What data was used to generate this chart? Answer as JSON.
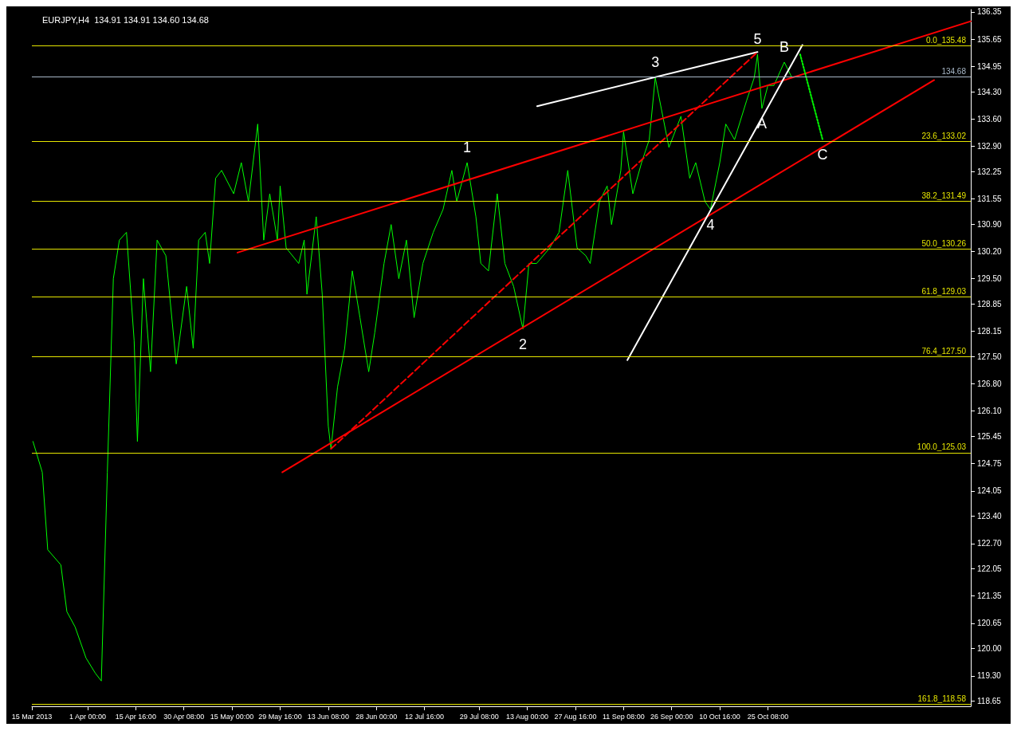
{
  "chart_data": {
    "type": "line",
    "title": "EURJPY,H4  134.91 134.91 134.60 134.68",
    "x": [
      "2013-03-15T08:00",
      "2013-03-18T04:00",
      "2013-03-19T20:00",
      "2013-03-23T20:00",
      "2013-03-25T16:00",
      "2013-03-28T04:00",
      "2013-03-31T12:00",
      "2013-04-03T08:00",
      "2013-04-05T04:00",
      "2013-04-07T00:00",
      "2013-04-08T20:00",
      "2013-04-10T16:00",
      "2013-04-12T20:00",
      "2013-04-15T04:00",
      "2013-04-16T04:00",
      "2013-04-18T00:00",
      "2013-04-20T04:00",
      "2013-04-22T04:00",
      "2013-04-24T20:00",
      "2013-04-28T00:00",
      "2013-05-01T04:00",
      "2013-05-03T04:00",
      "2013-05-04T20:00",
      "2013-05-06T20:00",
      "2013-05-08T04:00",
      "2013-05-10T00:00",
      "2013-05-11T20:00",
      "2013-05-15T12:00",
      "2013-05-17T20:00",
      "2013-05-20T00:00",
      "2013-05-22T20:00",
      "2013-05-24T16:00",
      "2013-05-26T12:00",
      "2013-05-28T20:00",
      "2013-05-29T16:00",
      "2013-05-31T12:00",
      "2013-06-04T08:00",
      "2013-06-06T00:00",
      "2013-06-06T20:00",
      "2013-06-09T16:00",
      "2013-06-11T12:00",
      "2013-06-13T08:00",
      "2013-06-14T04:00",
      "2013-06-16T04:00",
      "2013-06-18T08:00",
      "2013-06-20T16:00",
      "2013-06-23T00:00",
      "2013-06-25T16:00",
      "2013-06-27T12:00",
      "2013-06-30T08:00",
      "2013-07-02T12:00",
      "2013-07-04T20:00",
      "2013-07-07T04:00",
      "2013-07-09T12:00",
      "2013-07-12T04:00",
      "2013-07-15T08:00",
      "2013-07-18T08:00",
      "2013-07-21T00:00",
      "2013-07-22T12:00",
      "2013-07-25T16:00",
      "2013-07-28T08:00",
      "2013-07-29T20:00",
      "2013-08-01T04:00",
      "2013-08-03T20:00",
      "2013-08-06T04:00",
      "2013-08-08T20:00",
      "2013-08-11T16:00",
      "2013-08-13T12:00",
      "2013-08-15T20:00",
      "2013-08-19T20:00",
      "2013-08-22T16:00",
      "2013-08-25T08:00",
      "2013-08-28T04:00",
      "2013-08-30T20:00",
      "2013-09-01T04:00",
      "2013-09-04T00:00",
      "2013-09-06T08:00",
      "2013-09-07T16:00",
      "2013-09-10T12:00",
      "2013-09-11T08:00",
      "2013-09-14T04:00",
      "2013-09-16T20:00",
      "2013-09-19T04:00",
      "2013-09-21T00:00",
      "2013-09-22T20:00",
      "2013-09-25T04:00",
      "2013-09-28T20:00",
      "2013-10-01T12:00",
      "2013-10-03T08:00",
      "2013-10-06T04:00",
      "2013-10-07T20:00",
      "2013-10-10T16:00",
      "2013-10-12T12:00",
      "2013-10-15T04:00",
      "2013-10-18T20:00",
      "2013-10-21T04:00",
      "2013-10-22T04:00",
      "2013-10-23T12:00",
      "2013-10-25T08:00",
      "2013-10-27T04:00",
      "2013-10-30T08:00",
      "2013-11-01T16:00"
    ],
    "series": [
      {
        "color": "#00ff00",
        "values": [
          125.32,
          124.53,
          122.54,
          122.15,
          120.95,
          120.56,
          119.76,
          119.37,
          119.17,
          124.53,
          129.5,
          130.49,
          130.69,
          127.91,
          125.32,
          129.5,
          127.11,
          130.49,
          130.09,
          127.31,
          129.3,
          127.71,
          130.49,
          130.69,
          129.89,
          132.08,
          132.28,
          131.68,
          132.48,
          131.48,
          133.47,
          130.49,
          131.68,
          130.49,
          131.88,
          130.29,
          129.89,
          130.49,
          129.1,
          131.09,
          129.1,
          125.72,
          125.13,
          126.72,
          127.71,
          129.7,
          128.5,
          127.11,
          128.11,
          129.89,
          130.89,
          129.5,
          130.49,
          128.5,
          129.89,
          130.69,
          131.28,
          132.28,
          131.48,
          132.48,
          131.09,
          129.89,
          129.7,
          131.68,
          129.89,
          129.3,
          128.21,
          129.89,
          129.89,
          130.29,
          130.69,
          132.28,
          130.29,
          130.09,
          129.89,
          131.48,
          131.88,
          130.89,
          132.28,
          133.27,
          131.68,
          132.48,
          133.07,
          134.66,
          133.87,
          132.87,
          133.67,
          132.08,
          132.48,
          131.48,
          131.28,
          132.48,
          133.47,
          133.07,
          134.07,
          134.66,
          135.26,
          133.87,
          134.46,
          134.46,
          135.06,
          134.66
        ]
      },
      {
        "color": "#ff0000",
        "x": [
          "2013-05-16T16:00",
          "2013-12-26T04:00"
        ],
        "values": [
          130.17,
          136.11
        ]
      },
      {
        "color": "#ff0000",
        "x": [
          "2013-05-30T08:00",
          "2013-12-15T00:00"
        ],
        "values": [
          124.53,
          134.6
        ]
      },
      {
        "color": "#ffffff",
        "x": [
          "2013-08-16T00:00",
          "2013-10-22T04:00"
        ],
        "values": [
          133.93,
          135.32
        ]
      },
      {
        "color": "#ffffff",
        "x": [
          "2013-09-12T12:00",
          "2013-11-04T20:00"
        ],
        "values": [
          127.41,
          135.5
        ]
      },
      {
        "color": "#ff0000",
        "line_style": "dashed",
        "x": [
          "2013-06-14T04:00",
          "2013-10-22T04:00"
        ],
        "values": [
          125.13,
          135.32
        ]
      },
      {
        "color": "#00ff00",
        "line_style": "dotted",
        "x": [
          "2013-11-04T04:00",
          "2013-11-11T00:00"
        ],
        "values": [
          135.26,
          133.07
        ]
      }
    ],
    "xlim": [
      "2013-03-15T00:00",
      "2013-12-26T04:00"
    ],
    "xticks": [
      {
        "value": "2013-03-15T00:00",
        "label": "15 Mar 2013"
      },
      {
        "value": "2013-04-01T00:00",
        "label": "1 Apr 00:00"
      },
      {
        "value": "2013-04-15T16:00",
        "label": "15 Apr 16:00"
      },
      {
        "value": "2013-04-30T08:00",
        "label": "30 Apr 08:00"
      },
      {
        "value": "2013-05-15T00:00",
        "label": "15 May 00:00"
      },
      {
        "value": "2013-05-29T16:00",
        "label": "29 May 16:00"
      },
      {
        "value": "2013-06-13T08:00",
        "label": "13 Jun 08:00"
      },
      {
        "value": "2013-06-28T00:00",
        "label": "28 Jun 00:00"
      },
      {
        "value": "2013-07-12T16:00",
        "label": "12 Jul 16:00"
      },
      {
        "value": "2013-07-29T08:00",
        "label": "29 Jul 08:00"
      },
      {
        "value": "2013-08-13T00:00",
        "label": "13 Aug 00:00"
      },
      {
        "value": "2013-08-27T16:00",
        "label": "27 Aug 16:00"
      },
      {
        "value": "2013-09-11T08:00",
        "label": "11 Sep 08:00"
      },
      {
        "value": "2013-09-26T00:00",
        "label": "26 Sep 00:00"
      },
      {
        "value": "2013-10-10T16:00",
        "label": "10 Oct 16:00"
      },
      {
        "value": "2013-10-25T08:00",
        "label": "25 Oct 08:00"
      }
    ],
    "ylim": [
      118.52,
      136.41
    ],
    "yticks": [
      136.35,
      135.65,
      134.95,
      {
        "value": 134.3,
        "label": "134.30"
      },
      {
        "value": 133.6,
        "label": "133.60"
      },
      {
        "value": 132.9,
        "label": "132.90"
      },
      132.25,
      131.55,
      {
        "value": 130.9,
        "label": "130.90"
      },
      {
        "value": 130.2,
        "label": "130.20"
      },
      {
        "value": 129.5,
        "label": "129.50"
      },
      128.85,
      128.15,
      {
        "value": 127.5,
        "label": "127.50"
      },
      {
        "value": 126.8,
        "label": "126.80"
      },
      {
        "value": 126.1,
        "label": "126.10"
      },
      125.45,
      124.75,
      124.05,
      {
        "value": 123.4,
        "label": "123.40"
      },
      {
        "value": 122.7,
        "label": "122.70"
      },
      122.05,
      121.35,
      120.65,
      {
        "value": 120,
        "label": "120.00"
      },
      {
        "value": 119.3,
        "label": "119.30"
      },
      118.65
    ],
    "ref_lines": [
      {
        "axis": "y",
        "value": 135.48,
        "label": "0.0_135.48",
        "color": "#e6e600"
      },
      {
        "axis": "y",
        "value": 133.02,
        "label": "23.6_133.02",
        "color": "#e6e600"
      },
      {
        "axis": "y",
        "value": 131.49,
        "label": "38.2_131.49",
        "color": "#e6e600"
      },
      {
        "axis": "y",
        "value": 130.26,
        "label": "50.0_130.26",
        "color": "#e6e600"
      },
      {
        "axis": "y",
        "value": 129.03,
        "label": "61.8_129.03",
        "color": "#e6e600"
      },
      {
        "axis": "y",
        "value": 127.5,
        "label": "76.4_127.50",
        "color": "#e6e600"
      },
      {
        "axis": "y",
        "value": 125.03,
        "label": "100.0_125.03",
        "color": "#e6e600"
      },
      {
        "axis": "y",
        "value": 118.58,
        "label": "161.8_118.58",
        "color": "#e6e600"
      },
      {
        "axis": "y",
        "value": 134.68,
        "label": "134.68",
        "color": "#a8b8c8"
      }
    ],
    "annotations": [
      {
        "text": "1",
        "x": "2013-07-25T16:00",
        "y": 132.48
      },
      {
        "text": "2",
        "x": "2013-08-11T16:00",
        "y": 128.21
      },
      {
        "text": "3",
        "x": "2013-09-21T00:00",
        "y": 134.66
      },
      {
        "text": "4",
        "x": "2013-10-07T20:00",
        "y": 131.28
      },
      {
        "text": "5",
        "x": "2013-10-22T04:00",
        "y": 135.26
      },
      {
        "text": "A",
        "x": "2013-10-23T12:00",
        "y": 133.87
      },
      {
        "text": "B",
        "x": "2013-10-30T08:00",
        "y": 135.06
      },
      {
        "text": "C",
        "x": "2013-11-11T00:00",
        "y": 133.07
      }
    ],
    "grid": false,
    "marker": "none",
    "line_style": "solid"
  }
}
